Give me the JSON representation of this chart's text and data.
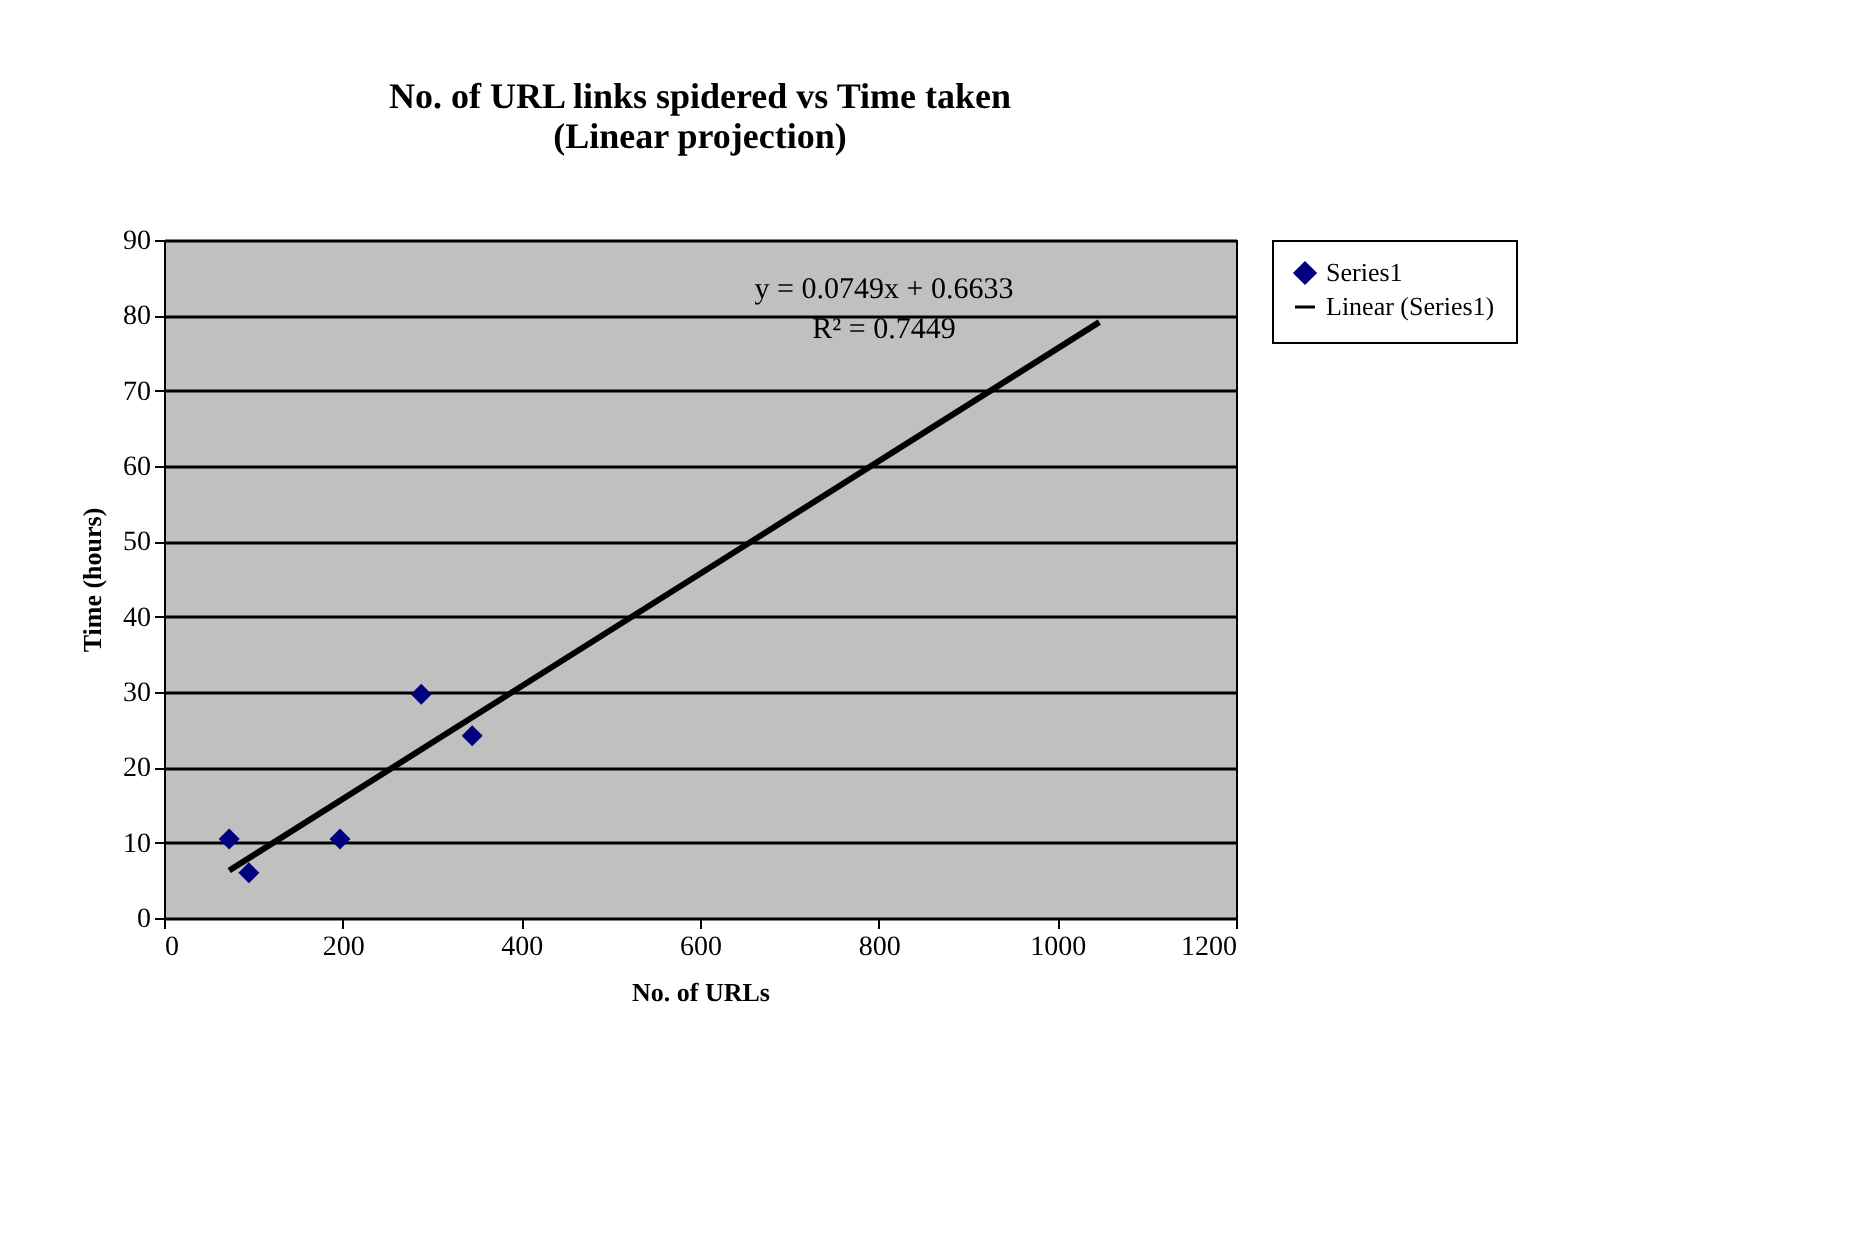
{
  "chart_data": {
    "type": "scatter",
    "title": [
      "No. of URL  links spidered vs Time taken",
      "(Linear projection)"
    ],
    "xlabel": "No. of URLs",
    "ylabel": "Time (hours)",
    "x": [
      73,
      95,
      197,
      288,
      345
    ],
    "series": [
      {
        "name": "Series1",
        "color": "#000080",
        "marker": "diamond",
        "values": [
          10.5,
          6.0,
          10.5,
          29.7,
          24.2
        ]
      },
      {
        "name": "Linear (Series1)",
        "type": "line",
        "color": "#000000",
        "line_style": "solid",
        "x": [
          73,
          1047
        ],
        "values": [
          6.3,
          79.1
        ]
      }
    ],
    "annotations": [
      "y = 0.0749x + 0.6633",
      "R² = 0.7449"
    ],
    "xlim": [
      0,
      1200
    ],
    "xticks": [
      0,
      200,
      400,
      600,
      800,
      1000,
      1200
    ],
    "ylim": [
      0,
      90
    ],
    "yticks": [
      0,
      10,
      20,
      30,
      40,
      50,
      60,
      70,
      80,
      90
    ],
    "grid": "y",
    "legend": "right"
  }
}
